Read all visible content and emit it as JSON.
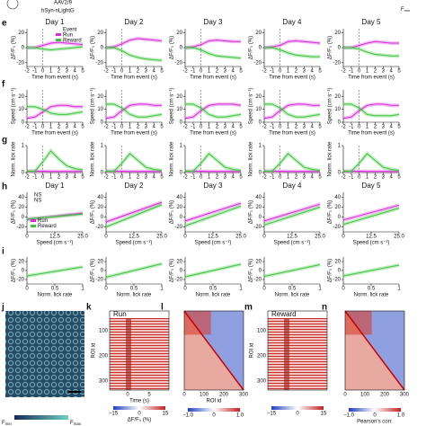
{
  "header": {
    "virus": "AAV2/9",
    "construct": "hSyn-nLightG",
    "fmin_main": "F",
    "fmin_sub": "min"
  },
  "days": [
    "Day 1",
    "Day 2",
    "Day 3",
    "Day 4",
    "Day 5"
  ],
  "rows": [
    {
      "label": "e",
      "ylabel": "ΔF/F₀ (%)",
      "xlabel": "Time from event (s)",
      "xlim": [
        -2,
        5
      ],
      "xticks": [
        -2,
        -1,
        0,
        1,
        2,
        3,
        4,
        5
      ],
      "ylim": [
        -25,
        25
      ],
      "yticks": [
        -20,
        0,
        20
      ],
      "x": [
        -2,
        -1,
        0,
        1,
        2,
        3,
        4,
        5
      ],
      "event_label": "Event",
      "series": [
        {
          "name": "Run",
          "color": "#d62bd6",
          "values": [
            [
              0,
              0,
              3,
              6,
              7,
              6,
              5,
              4
            ],
            [
              0,
              1,
              5,
              10,
              12,
              11,
              10,
              9
            ],
            [
              0,
              1,
              4,
              9,
              10,
              9,
              8,
              8
            ],
            [
              0,
              1,
              3,
              8,
              9,
              8,
              7,
              6
            ],
            [
              0,
              0,
              3,
              6,
              8,
              7,
              6,
              6
            ]
          ]
        },
        {
          "name": "Reward",
          "color": "#3cc43c",
          "values": [
            [
              0,
              0,
              -2,
              -3,
              -2,
              -1,
              0,
              1
            ],
            [
              0,
              0,
              -4,
              -10,
              -13,
              -15,
              -16,
              -17
            ],
            [
              0,
              0,
              -3,
              -8,
              -11,
              -12,
              -13,
              -14
            ],
            [
              0,
              0,
              -3,
              -7,
              -10,
              -11,
              -12,
              -12
            ],
            [
              0,
              0,
              -2,
              -6,
              -9,
              -10,
              -11,
              -11
            ]
          ]
        }
      ]
    },
    {
      "label": "f",
      "ylabel": "Speed (cm s⁻¹)",
      "xlabel": "Time from event (s)",
      "xlim": [
        -2,
        5
      ],
      "xticks": [
        -2,
        -1,
        0,
        1,
        2,
        3,
        4,
        5
      ],
      "ylim": [
        0,
        25
      ],
      "yticks": [
        0,
        10,
        20
      ],
      "x": [
        -2,
        -1,
        0,
        1,
        2,
        3,
        4,
        5
      ],
      "series": [
        {
          "name": "Run",
          "color": "#d62bd6",
          "values": [
            [
              3,
              4,
              8,
              12,
              13,
              13,
              12,
              12
            ],
            [
              3,
              4,
              9,
              13,
              14,
              14,
              13,
              13
            ],
            [
              3,
              4,
              9,
              13,
              14,
              14,
              14,
              13
            ],
            [
              3,
              4,
              9,
              13,
              14,
              14,
              13,
              13
            ],
            [
              3,
              4,
              9,
              13,
              14,
              14,
              13,
              13
            ]
          ]
        },
        {
          "name": "Reward",
          "color": "#3cc43c",
          "values": [
            [
              12,
              12,
              10,
              7,
              6,
              6,
              7,
              8
            ],
            [
              14,
              14,
              11,
              6,
              4,
              4,
              5,
              6
            ],
            [
              14,
              14,
              11,
              6,
              4,
              4,
              5,
              6
            ],
            [
              14,
              14,
              11,
              6,
              4,
              4,
              5,
              6
            ],
            [
              14,
              14,
              11,
              6,
              5,
              5,
              5,
              6
            ]
          ]
        }
      ]
    },
    {
      "label": "g",
      "ylabel": "Norm. lick rate",
      "xlim": [
        -2,
        5
      ],
      "xticks": [
        -2,
        -1,
        0,
        1,
        2,
        3,
        4,
        5
      ],
      "ylim": [
        0,
        1
      ],
      "yticks": [
        0,
        1
      ],
      "x": [
        -2,
        -1,
        0,
        1,
        2,
        3,
        4,
        5
      ],
      "series": [
        {
          "name": "Run",
          "color": "#d62bd6",
          "values": [
            [
              0.05,
              0.05,
              0.05,
              0.04,
              0.04,
              0.04,
              0.04,
              0.04
            ],
            [
              0.05,
              0.05,
              0.05,
              0.04,
              0.04,
              0.04,
              0.04,
              0.04
            ],
            [
              0.05,
              0.05,
              0.05,
              0.04,
              0.04,
              0.04,
              0.04,
              0.04
            ],
            [
              0.05,
              0.05,
              0.05,
              0.04,
              0.04,
              0.04,
              0.04,
              0.04
            ],
            [
              0.05,
              0.05,
              0.05,
              0.04,
              0.04,
              0.04,
              0.04,
              0.04
            ]
          ]
        },
        {
          "name": "Reward",
          "color": "#3cc43c",
          "values": [
            [
              0.05,
              0.05,
              0.4,
              0.8,
              0.5,
              0.25,
              0.15,
              0.1
            ],
            [
              0.05,
              0.05,
              0.35,
              0.7,
              0.45,
              0.2,
              0.12,
              0.08
            ],
            [
              0.05,
              0.05,
              0.35,
              0.7,
              0.45,
              0.2,
              0.12,
              0.08
            ],
            [
              0.05,
              0.05,
              0.35,
              0.7,
              0.45,
              0.2,
              0.12,
              0.08
            ],
            [
              0.05,
              0.05,
              0.35,
              0.7,
              0.45,
              0.2,
              0.12,
              0.08
            ]
          ]
        }
      ]
    },
    {
      "label": "h",
      "ylabel": "ΔF/F₀ (%)",
      "xlabel": "Speed (cm s⁻¹)",
      "xlim": [
        0,
        25
      ],
      "xticks": [
        0,
        {
          "value": 12.5,
          "label": "12.5"
        },
        {
          "value": 25,
          "label": "25.0"
        }
      ],
      "ylim": [
        -30,
        50
      ],
      "yticks": [
        -20,
        0,
        20,
        40
      ],
      "x": [
        0,
        25
      ],
      "titled": true,
      "ns": [
        "NS",
        "NS"
      ],
      "series": [
        {
          "name": "Run",
          "color": "#d62bd6",
          "values": [
            [
              -5,
              8
            ],
            [
              -10,
              30
            ],
            [
              -8,
              28
            ],
            [
              -8,
              26
            ],
            [
              -6,
              24
            ]
          ]
        },
        {
          "name": "Reward",
          "color": "#3cc43c",
          "values": [
            [
              -4,
              6
            ],
            [
              -20,
              25
            ],
            [
              -18,
              22
            ],
            [
              -16,
              20
            ],
            [
              -15,
              18
            ]
          ]
        }
      ]
    },
    {
      "label": "i",
      "ylabel": "ΔF/F₀ (%)",
      "xlabel": "Norm. lick rate",
      "xlim": [
        0,
        1
      ],
      "xticks": [
        0,
        0.5,
        1
      ],
      "ylim": [
        -30,
        30
      ],
      "yticks": [
        -20,
        0,
        20
      ],
      "x": [
        0,
        1
      ],
      "series": [
        {
          "name": "Reward",
          "color": "#3cc43c",
          "values": [
            [
              -12,
              8
            ],
            [
              -15,
              15
            ],
            [
              -14,
              14
            ],
            [
              -13,
              13
            ],
            [
              -12,
              12
            ]
          ]
        }
      ]
    }
  ],
  "bottom": {
    "j": {
      "label": "j",
      "fmin_main": "F",
      "fmin_sub": "min",
      "fmax_main": "F",
      "fmax_sub": "max"
    },
    "k": {
      "label": "k",
      "title": "Run",
      "ylabel": "ROI id",
      "yticks": [
        "100",
        "200",
        "300"
      ],
      "xlabel": "Time (s)",
      "xticks": [
        "0",
        "5"
      ],
      "cbar_ticks": [
        "−15",
        "0",
        "15"
      ],
      "cbar_label": "ΔF/F₀ (%)"
    },
    "l": {
      "label": "l",
      "xlabel": "ROI id",
      "xticks": [
        "0",
        "100",
        "200",
        "300"
      ],
      "cbar_ticks": [
        "−1.0",
        "0",
        "1.0"
      ]
    },
    "m": {
      "label": "m",
      "title": "Reward",
      "ylabel": "ROI id",
      "yticks": [
        "100",
        "200",
        "300"
      ],
      "cbar_ticks": [
        "−15",
        "0",
        "15"
      ]
    },
    "n": {
      "label": "n",
      "xticks": [
        "0",
        "100",
        "200",
        "300"
      ],
      "cbar_ticks": [
        "−1.0",
        "0",
        "1.0"
      ],
      "cbar_label": "Pearson's corr."
    }
  }
}
